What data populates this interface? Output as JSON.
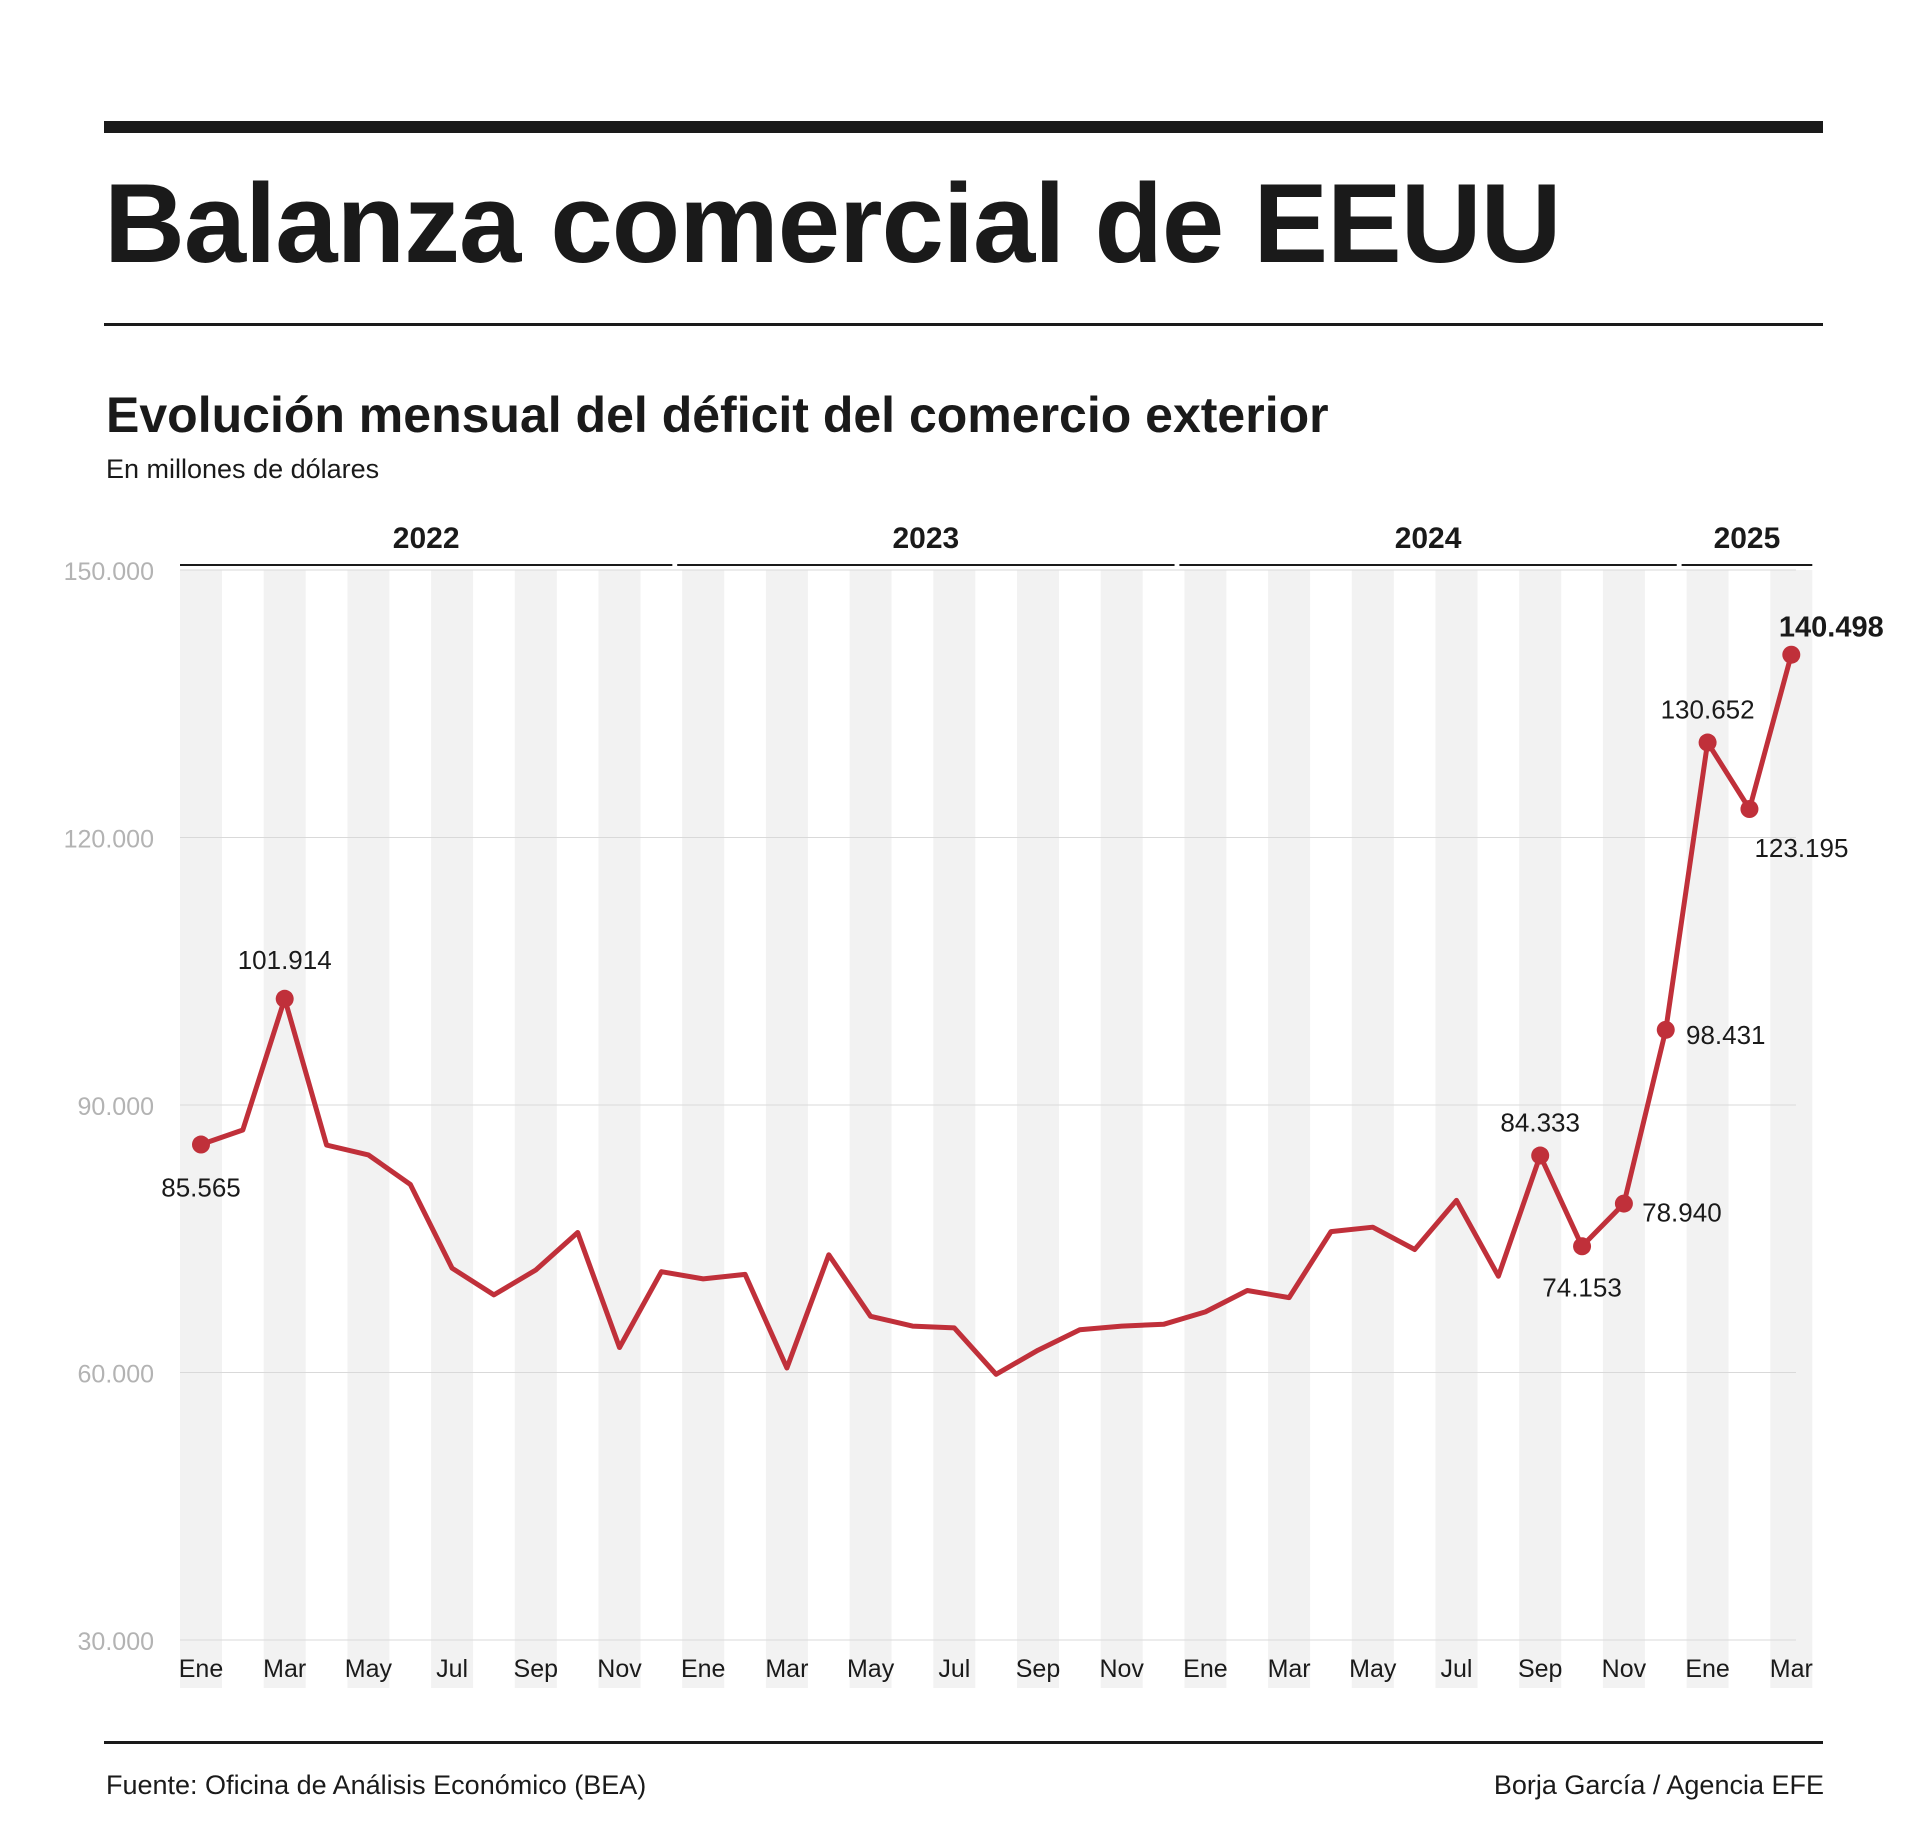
{
  "header": {
    "title": "Balanza comercial de EEUU",
    "subtitle": "Evolución mensual del déficit del comercio exterior",
    "unit": "En millones de dólares"
  },
  "footer": {
    "source": "Fuente: Oficina de Análisis Económico (BEA)",
    "credit": "Borja García / Agencia EFE"
  },
  "colors": {
    "line": "#c0303a",
    "band": "#f2f2f2",
    "grid": "#d9d9d9",
    "axis_text": "#b3b3b3",
    "text": "#1a1a1a"
  },
  "chart_data": {
    "type": "line",
    "title": "Evolución mensual del déficit del comercio exterior",
    "ylabel": "En millones de dólares",
    "ylim": [
      30000,
      150000
    ],
    "yticks": [
      30000,
      60000,
      90000,
      120000,
      150000
    ],
    "ytick_labels": [
      "30.000",
      "60.000",
      "90.000",
      "120.000",
      "150.000"
    ],
    "grid": true,
    "years": [
      {
        "label": "2022",
        "start": 0,
        "end": 11
      },
      {
        "label": "2023",
        "start": 12,
        "end": 23
      },
      {
        "label": "2024",
        "start": 24,
        "end": 35
      },
      {
        "label": "2025",
        "start": 36,
        "end": 38
      }
    ],
    "tick_labels": [
      "Ene",
      "",
      "Mar",
      "",
      "May",
      "",
      "Jul",
      "",
      "Sep",
      "",
      "Nov",
      "",
      "Ene",
      "",
      "Mar",
      "",
      "May",
      "",
      "Jul",
      "",
      "Sep",
      "",
      "Nov",
      "",
      "Ene",
      "",
      "Mar",
      "",
      "May",
      "",
      "Jul",
      "",
      "Sep",
      "",
      "Nov",
      "",
      "Ene",
      "",
      "Mar"
    ],
    "x": [
      "2022-01",
      "2022-02",
      "2022-03",
      "2022-04",
      "2022-05",
      "2022-06",
      "2022-07",
      "2022-08",
      "2022-09",
      "2022-10",
      "2022-11",
      "2022-12",
      "2023-01",
      "2023-02",
      "2023-03",
      "2023-04",
      "2023-05",
      "2023-06",
      "2023-07",
      "2023-08",
      "2023-09",
      "2023-10",
      "2023-11",
      "2023-12",
      "2024-01",
      "2024-02",
      "2024-03",
      "2024-04",
      "2024-05",
      "2024-06",
      "2024-07",
      "2024-08",
      "2024-09",
      "2024-10",
      "2024-11",
      "2024-12",
      "2025-01",
      "2025-02",
      "2025-03"
    ],
    "series": [
      {
        "values": [
          85565,
          87200,
          101914,
          85500,
          84400,
          81100,
          71700,
          68700,
          71500,
          75700,
          62800,
          71300,
          70500,
          71000,
          60500,
          73200,
          66300,
          65200,
          65000,
          59800,
          62500,
          64800,
          65200,
          65400,
          66800,
          69200,
          68400,
          75800,
          76300,
          73800,
          79300,
          70800,
          84333,
          74153,
          78940,
          98431,
          130652,
          123195,
          140498
        ]
      }
    ],
    "annotations": [
      {
        "index": 0,
        "label": "85.565",
        "bold": false
      },
      {
        "index": 2,
        "label": "101.914",
        "bold": false
      },
      {
        "index": 32,
        "label": "84.333",
        "bold": false
      },
      {
        "index": 33,
        "label": "74.153",
        "bold": false
      },
      {
        "index": 34,
        "label": "78.940",
        "bold": false
      },
      {
        "index": 35,
        "label": "98.431",
        "bold": false
      },
      {
        "index": 36,
        "label": "130.652",
        "bold": false
      },
      {
        "index": 37,
        "label": "123.195",
        "bold": false
      },
      {
        "index": 38,
        "label": "140.498",
        "bold": true
      }
    ]
  }
}
